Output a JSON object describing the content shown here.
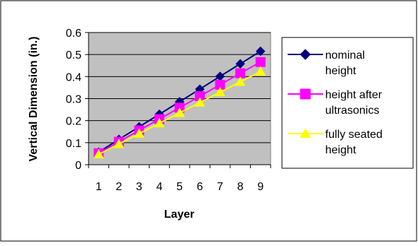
{
  "chart_data": {
    "type": "line",
    "title": "",
    "xlabel": "Layer",
    "ylabel": "Vertical Dimension (in.)",
    "x": [
      1,
      2,
      3,
      4,
      5,
      6,
      7,
      8,
      9
    ],
    "ylim": [
      0,
      0.6
    ],
    "yticks": [
      "0",
      "0.1",
      "0.2",
      "0.3",
      "0.4",
      "0.5",
      "0.6"
    ],
    "xticks": [
      "1",
      "2",
      "3",
      "4",
      "5",
      "6",
      "7",
      "8",
      "9"
    ],
    "grid": true,
    "legend_position": "right",
    "plot_background": "#c0c0c0",
    "series": [
      {
        "name_lines": [
          "nominal",
          "height"
        ],
        "values": [
          0.057,
          0.115,
          0.172,
          0.229,
          0.286,
          0.343,
          0.401,
          0.458,
          0.515
        ],
        "color": "#000080",
        "marker": "diamond"
      },
      {
        "name_lines": [
          "height after",
          "ultrasonics"
        ],
        "values": [
          0.052,
          0.104,
          0.156,
          0.207,
          0.259,
          0.311,
          0.363,
          0.415,
          0.466
        ],
        "color": "#ff00ff",
        "marker": "square"
      },
      {
        "name_lines": [
          "fully seated",
          "height"
        ],
        "values": [
          0.047,
          0.094,
          0.141,
          0.188,
          0.235,
          0.282,
          0.329,
          0.376,
          0.423
        ],
        "color": "#ffff00",
        "marker": "triangle"
      }
    ]
  }
}
